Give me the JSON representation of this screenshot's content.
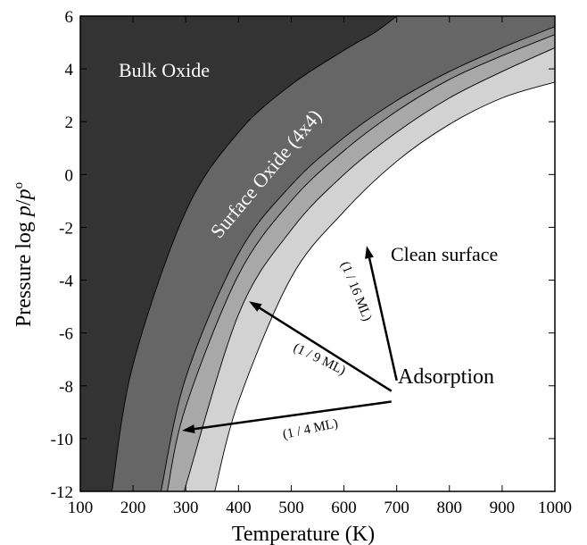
{
  "chart_data": {
    "type": "area",
    "title": "",
    "xlabel": "Temperature (K)",
    "ylabel_prefix": "Pressure  log ",
    "ylabel_p": "p",
    "ylabel_slash": "/",
    "ylabel_p0": "p",
    "ylabel_sup": "o",
    "xlim": [
      100,
      1000
    ],
    "ylim": [
      -12,
      6
    ],
    "x_ticks": [
      100,
      200,
      300,
      400,
      500,
      600,
      700,
      800,
      900,
      1000
    ],
    "y_ticks": [
      6,
      4,
      2,
      0,
      -2,
      -4,
      -6,
      -8,
      -10,
      -12
    ],
    "regions": [
      {
        "name": "Bulk Oxide",
        "color": "#333333"
      },
      {
        "name": "Surface Oxide (4x4)",
        "color": "#666666"
      },
      {
        "name": "1/9 ML",
        "color": "#8c8c8c"
      },
      {
        "name": "1/4 ML",
        "color": "#a8a8a8"
      },
      {
        "name": "1/16 ML",
        "color": "#d2d2d2"
      },
      {
        "name": "Clean surface",
        "color": "#ffffff"
      }
    ],
    "boundaries": [
      {
        "between": [
          "Bulk Oxide",
          "Surface Oxide (4x4)"
        ],
        "points": [
          [
            160,
            -12
          ],
          [
            200,
            -7.2
          ],
          [
            300,
            -1.4
          ],
          [
            400,
            1.6
          ],
          [
            500,
            3.4
          ],
          [
            600,
            4.7
          ],
          [
            660,
            5.4
          ],
          [
            700,
            6
          ]
        ]
      },
      {
        "between": [
          "Surface Oxide (4x4)",
          "1/9 ML"
        ],
        "points": [
          [
            253,
            -12
          ],
          [
            300,
            -7.7
          ],
          [
            400,
            -3.0
          ],
          [
            500,
            -0.4
          ],
          [
            600,
            1.4
          ],
          [
            700,
            2.8
          ],
          [
            800,
            3.9
          ],
          [
            900,
            4.8
          ],
          [
            1000,
            5.6
          ]
        ]
      },
      {
        "between": [
          "1/9 ML",
          "1/4 ML"
        ],
        "points": [
          [
            265,
            -12
          ],
          [
            300,
            -8.8
          ],
          [
            400,
            -3.8
          ],
          [
            500,
            -1.0
          ],
          [
            600,
            0.9
          ],
          [
            700,
            2.4
          ],
          [
            800,
            3.6
          ],
          [
            900,
            4.5
          ],
          [
            1000,
            5.3
          ]
        ]
      },
      {
        "between": [
          "1/4 ML",
          "1/16 ML"
        ],
        "points": [
          [
            297,
            -12
          ],
          [
            400,
            -5.3
          ],
          [
            500,
            -2.1
          ],
          [
            600,
            0.0
          ],
          [
            700,
            1.6
          ],
          [
            800,
            2.9
          ],
          [
            900,
            3.9
          ],
          [
            1000,
            4.8
          ]
        ]
      },
      {
        "between": [
          "1/16 ML",
          "Clean surface"
        ],
        "points": [
          [
            355,
            -12
          ],
          [
            400,
            -8.6
          ],
          [
            500,
            -3.9
          ],
          [
            600,
            -1.4
          ],
          [
            700,
            0.5
          ],
          [
            800,
            1.9
          ],
          [
            900,
            2.9
          ],
          [
            1000,
            3.5
          ]
        ]
      }
    ],
    "labels": {
      "bulk_oxide": "Bulk Oxide",
      "surface_oxide": "Surface Oxide (4x4)",
      "clean_surface": "Clean surface",
      "adsorption": "Adsorption",
      "ml_16": "(1 / 16 ML)",
      "ml_9": "(1 / 9 ML)",
      "ml_4": "(1 / 4 ML)"
    },
    "arrows": [
      {
        "label": "(1 / 16 ML)",
        "from": [
          700,
          -7.8
        ],
        "to": [
          643,
          -2.7
        ]
      },
      {
        "label": "(1 / 9 ML)",
        "from": [
          690,
          -8.2
        ],
        "to": [
          420,
          -4.8
        ]
      },
      {
        "label": "(1 / 4 ML)",
        "from": [
          690,
          -8.6
        ],
        "to": [
          293,
          -9.7
        ]
      }
    ]
  }
}
